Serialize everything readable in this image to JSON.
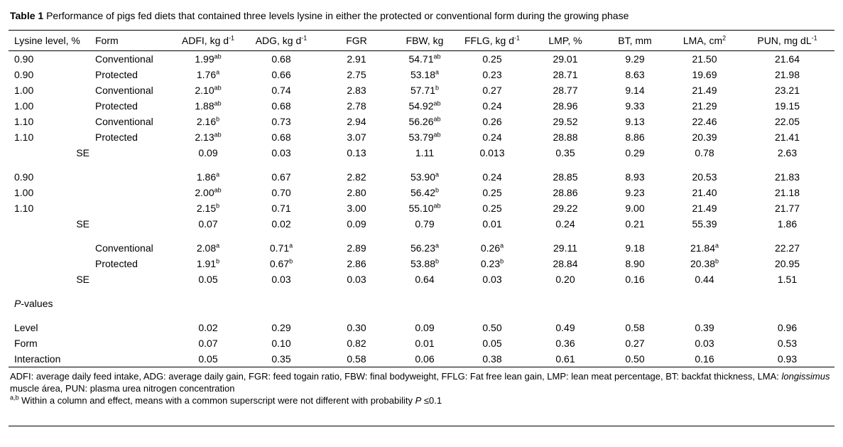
{
  "title": "*Table 1* Performance of pigs fed diets that contained three levels lysine in either the protected or conventional form during the growing phase",
  "chart_data": {
    "type": "table",
    "title": "Performance of pigs fed diets that contained three levels lysine in either the protected or conventional form during the growing phase"
  },
  "table": {
    "headers": [
      "Lysine level, %",
      "Form",
      "ADFI, kg d^-1^",
      "ADG, kg d^-1^",
      "FGR",
      "FBW, kg",
      "FFLG, kg d^-1^",
      "LMP, %",
      "BT, mm",
      "LMA, cm^2^",
      "PUN, mg dL^-1^"
    ],
    "sections": [
      {
        "name": "lysine-by-form-means",
        "rows": [
          [
            "0.90",
            "Conventional",
            "1.99^ab^",
            "0.68",
            "2.91",
            "54.71^ab^",
            "0.25",
            "29.01",
            "9.29",
            "21.50",
            "21.64"
          ],
          [
            "0.90",
            "Protected",
            "1.76^a^",
            "0.66",
            "2.75",
            "53.18^a^",
            "0.23",
            "28.71",
            "8.63",
            "19.69",
            "21.98"
          ],
          [
            "1.00",
            "Conventional",
            "2.10^ab^",
            "0.74",
            "2.83",
            "57.71^b^",
            "0.27",
            "28.77",
            "9.14",
            "21.49",
            "23.21"
          ],
          [
            "1.00",
            "Protected",
            "1.88^ab^",
            "0.68",
            "2.78",
            "54.92^ab^",
            "0.24",
            "28.96",
            "9.33",
            "21.29",
            "19.15"
          ],
          [
            "1.10",
            "Conventional",
            "2.16^b^",
            "0.73",
            "2.94",
            "56.26^ab^",
            "0.26",
            "29.52",
            "9.13",
            "22.46",
            "22.05"
          ],
          [
            "1.10",
            "Protected",
            "2.13^ab^",
            "0.68",
            "3.07",
            "53.79^ab^",
            "0.24",
            "28.88",
            "8.86",
            "20.39",
            "21.41"
          ],
          [
            "SE",
            "",
            "0.09",
            "0.03",
            "0.13",
            "1.11",
            "0.013",
            "0.35",
            "0.29",
            "0.78",
            "2.63"
          ]
        ]
      },
      {
        "name": "lysine-level-means",
        "rows": [
          [
            "0.90",
            "",
            "1.86^a^",
            "0.67",
            "2.82",
            "53.90^a^",
            "0.24",
            "28.85",
            "8.93",
            "20.53",
            "21.83"
          ],
          [
            "1.00",
            "",
            "2.00^ab^",
            "0.70",
            "2.80",
            "56.42^b^",
            "0.25",
            "28.86",
            "9.23",
            "21.40",
            "21.18"
          ],
          [
            "1.10",
            "",
            "2.15^b^",
            "0.71",
            "3.00",
            "55.10^ab^",
            "0.25",
            "29.22",
            "9.00",
            "21.49",
            "21.77"
          ],
          [
            "SE",
            "",
            "0.07",
            "0.02",
            "0.09",
            "0.79",
            "0.01",
            "0.24",
            "0.21",
            "55.39",
            "1.86"
          ]
        ]
      },
      {
        "name": "form-means",
        "rows": [
          [
            "",
            "Conventional",
            "2.08^a^",
            "0.71^a^",
            "2.89",
            "56.23^a^",
            "0.26^a^",
            "29.11",
            "9.18",
            "21.84^a^",
            "22.27"
          ],
          [
            "",
            "Protected",
            "1.91^b^",
            "0.67^b^",
            "2.86",
            "53.88^b^",
            "0.23^b^",
            "28.84",
            "8.90",
            "20.38^b^",
            "20.95"
          ],
          [
            "SE",
            "",
            "0.05",
            "0.03",
            "0.03",
            "0.64",
            "0.03",
            "0.20",
            "0.16",
            "0.44",
            "1.51"
          ]
        ]
      },
      {
        "name": "p-values-heading",
        "rows": [
          [
            "_P_-values",
            "",
            "",
            "",
            "",
            "",
            "",
            "",
            "",
            "",
            ""
          ]
        ]
      },
      {
        "name": "p-values",
        "rows": [
          [
            "Level",
            "",
            "0.02",
            "0.29",
            "0.30",
            "0.09",
            "0.50",
            "0.49",
            "0.58",
            "0.39",
            "0.96"
          ],
          [
            "Form",
            "",
            "0.07",
            "0.10",
            "0.82",
            "0.01",
            "0.05",
            "0.36",
            "0.27",
            "0.03",
            "0.53"
          ],
          [
            "Interaction",
            "",
            "0.05",
            "0.35",
            "0.58",
            "0.06",
            "0.38",
            "0.61",
            "0.50",
            "0.16",
            "0.93"
          ]
        ]
      }
    ]
  },
  "footnotes": [
    "ADFI: average daily feed intake, ADG: average daily gain, FGR: feed togain ratio, FBW: final bodyweight, FFLG: Fat free lean gain, LMP: lean meat percentage, BT: backfat thickness, LMA: _longissimus_ muscle área, PUN: plasma urea nitrogen concentration",
    "^a,b^ Within a column and effect, means with a common superscript were not different with probability _P_ ≤0.1"
  ]
}
